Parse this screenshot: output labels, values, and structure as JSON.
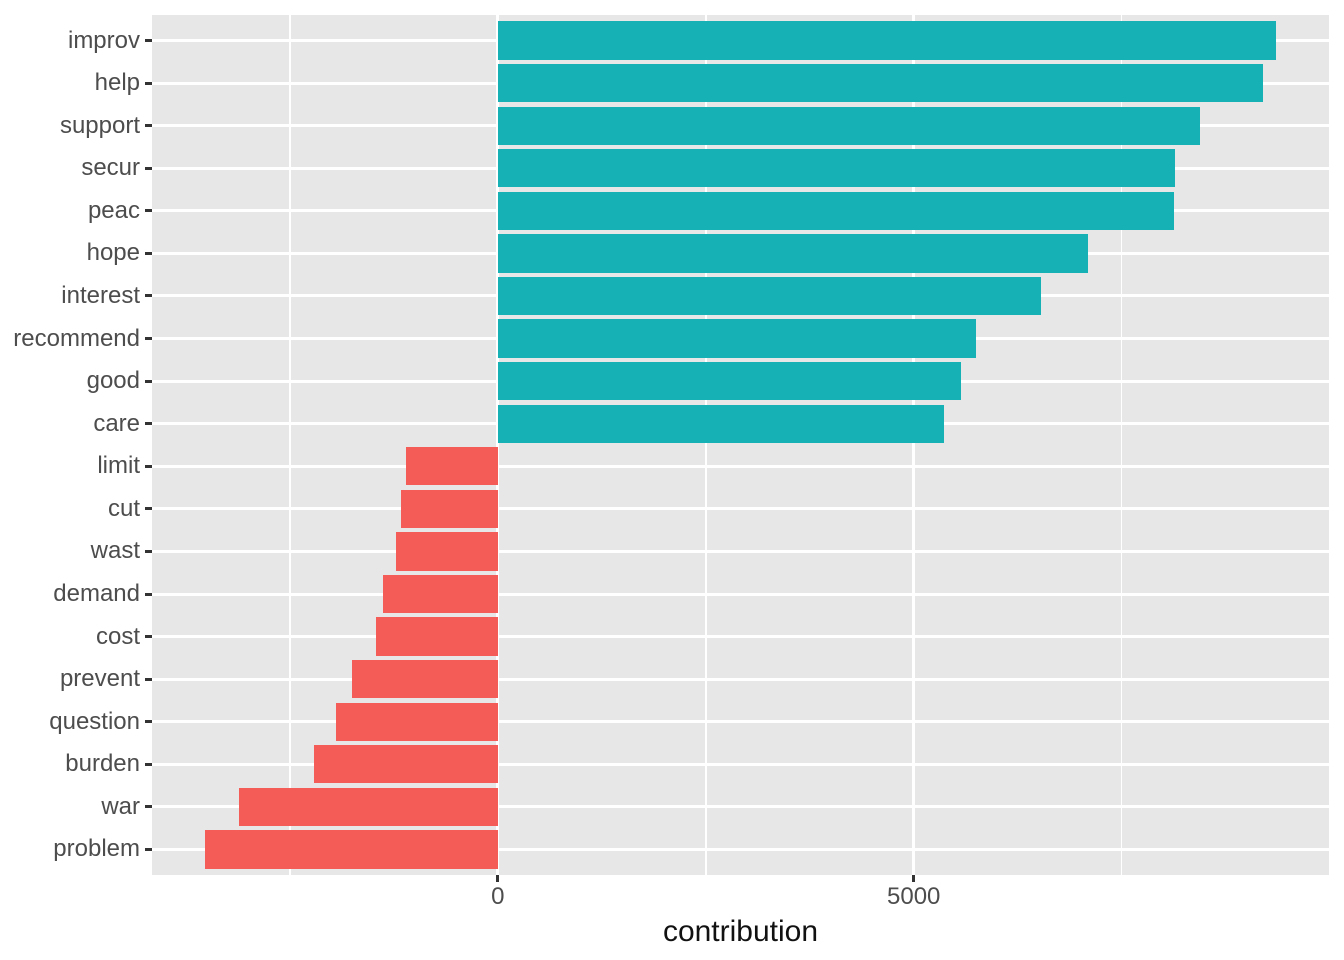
{
  "chart_data": {
    "type": "bar",
    "orientation": "horizontal",
    "title": "",
    "xlabel": "contribution",
    "ylabel": "",
    "categories": [
      "improv",
      "help",
      "support",
      "secur",
      "peac",
      "hope",
      "interest",
      "recommend",
      "good",
      "care",
      "limit",
      "cut",
      "wast",
      "demand",
      "cost",
      "prevent",
      "question",
      "burden",
      "war",
      "problem"
    ],
    "values": [
      9350,
      9200,
      8440,
      8140,
      8130,
      7095,
      6530,
      5745,
      5565,
      5360,
      -1100,
      -1160,
      -1220,
      -1380,
      -1460,
      -1750,
      -1950,
      -2205,
      -3115,
      -3515
    ],
    "xlim": [
      -4158,
      9993
    ],
    "x_ticks": [
      {
        "value": 0,
        "label": "0"
      },
      {
        "value": 5000,
        "label": "5000"
      }
    ],
    "x_minor_ticks": [
      -2500,
      2500,
      7500
    ],
    "grid": true,
    "legend_position": "none",
    "colors": {
      "positive": "#15B1B4",
      "negative": "#F35C57",
      "panel_background": "#E7E7E7",
      "grid_major": "#FFFFFF",
      "grid_minor": "#FFFFFF",
      "tick_mark": "#333333",
      "axis_text": "#4D4D4D",
      "axis_title": "#111111"
    }
  }
}
